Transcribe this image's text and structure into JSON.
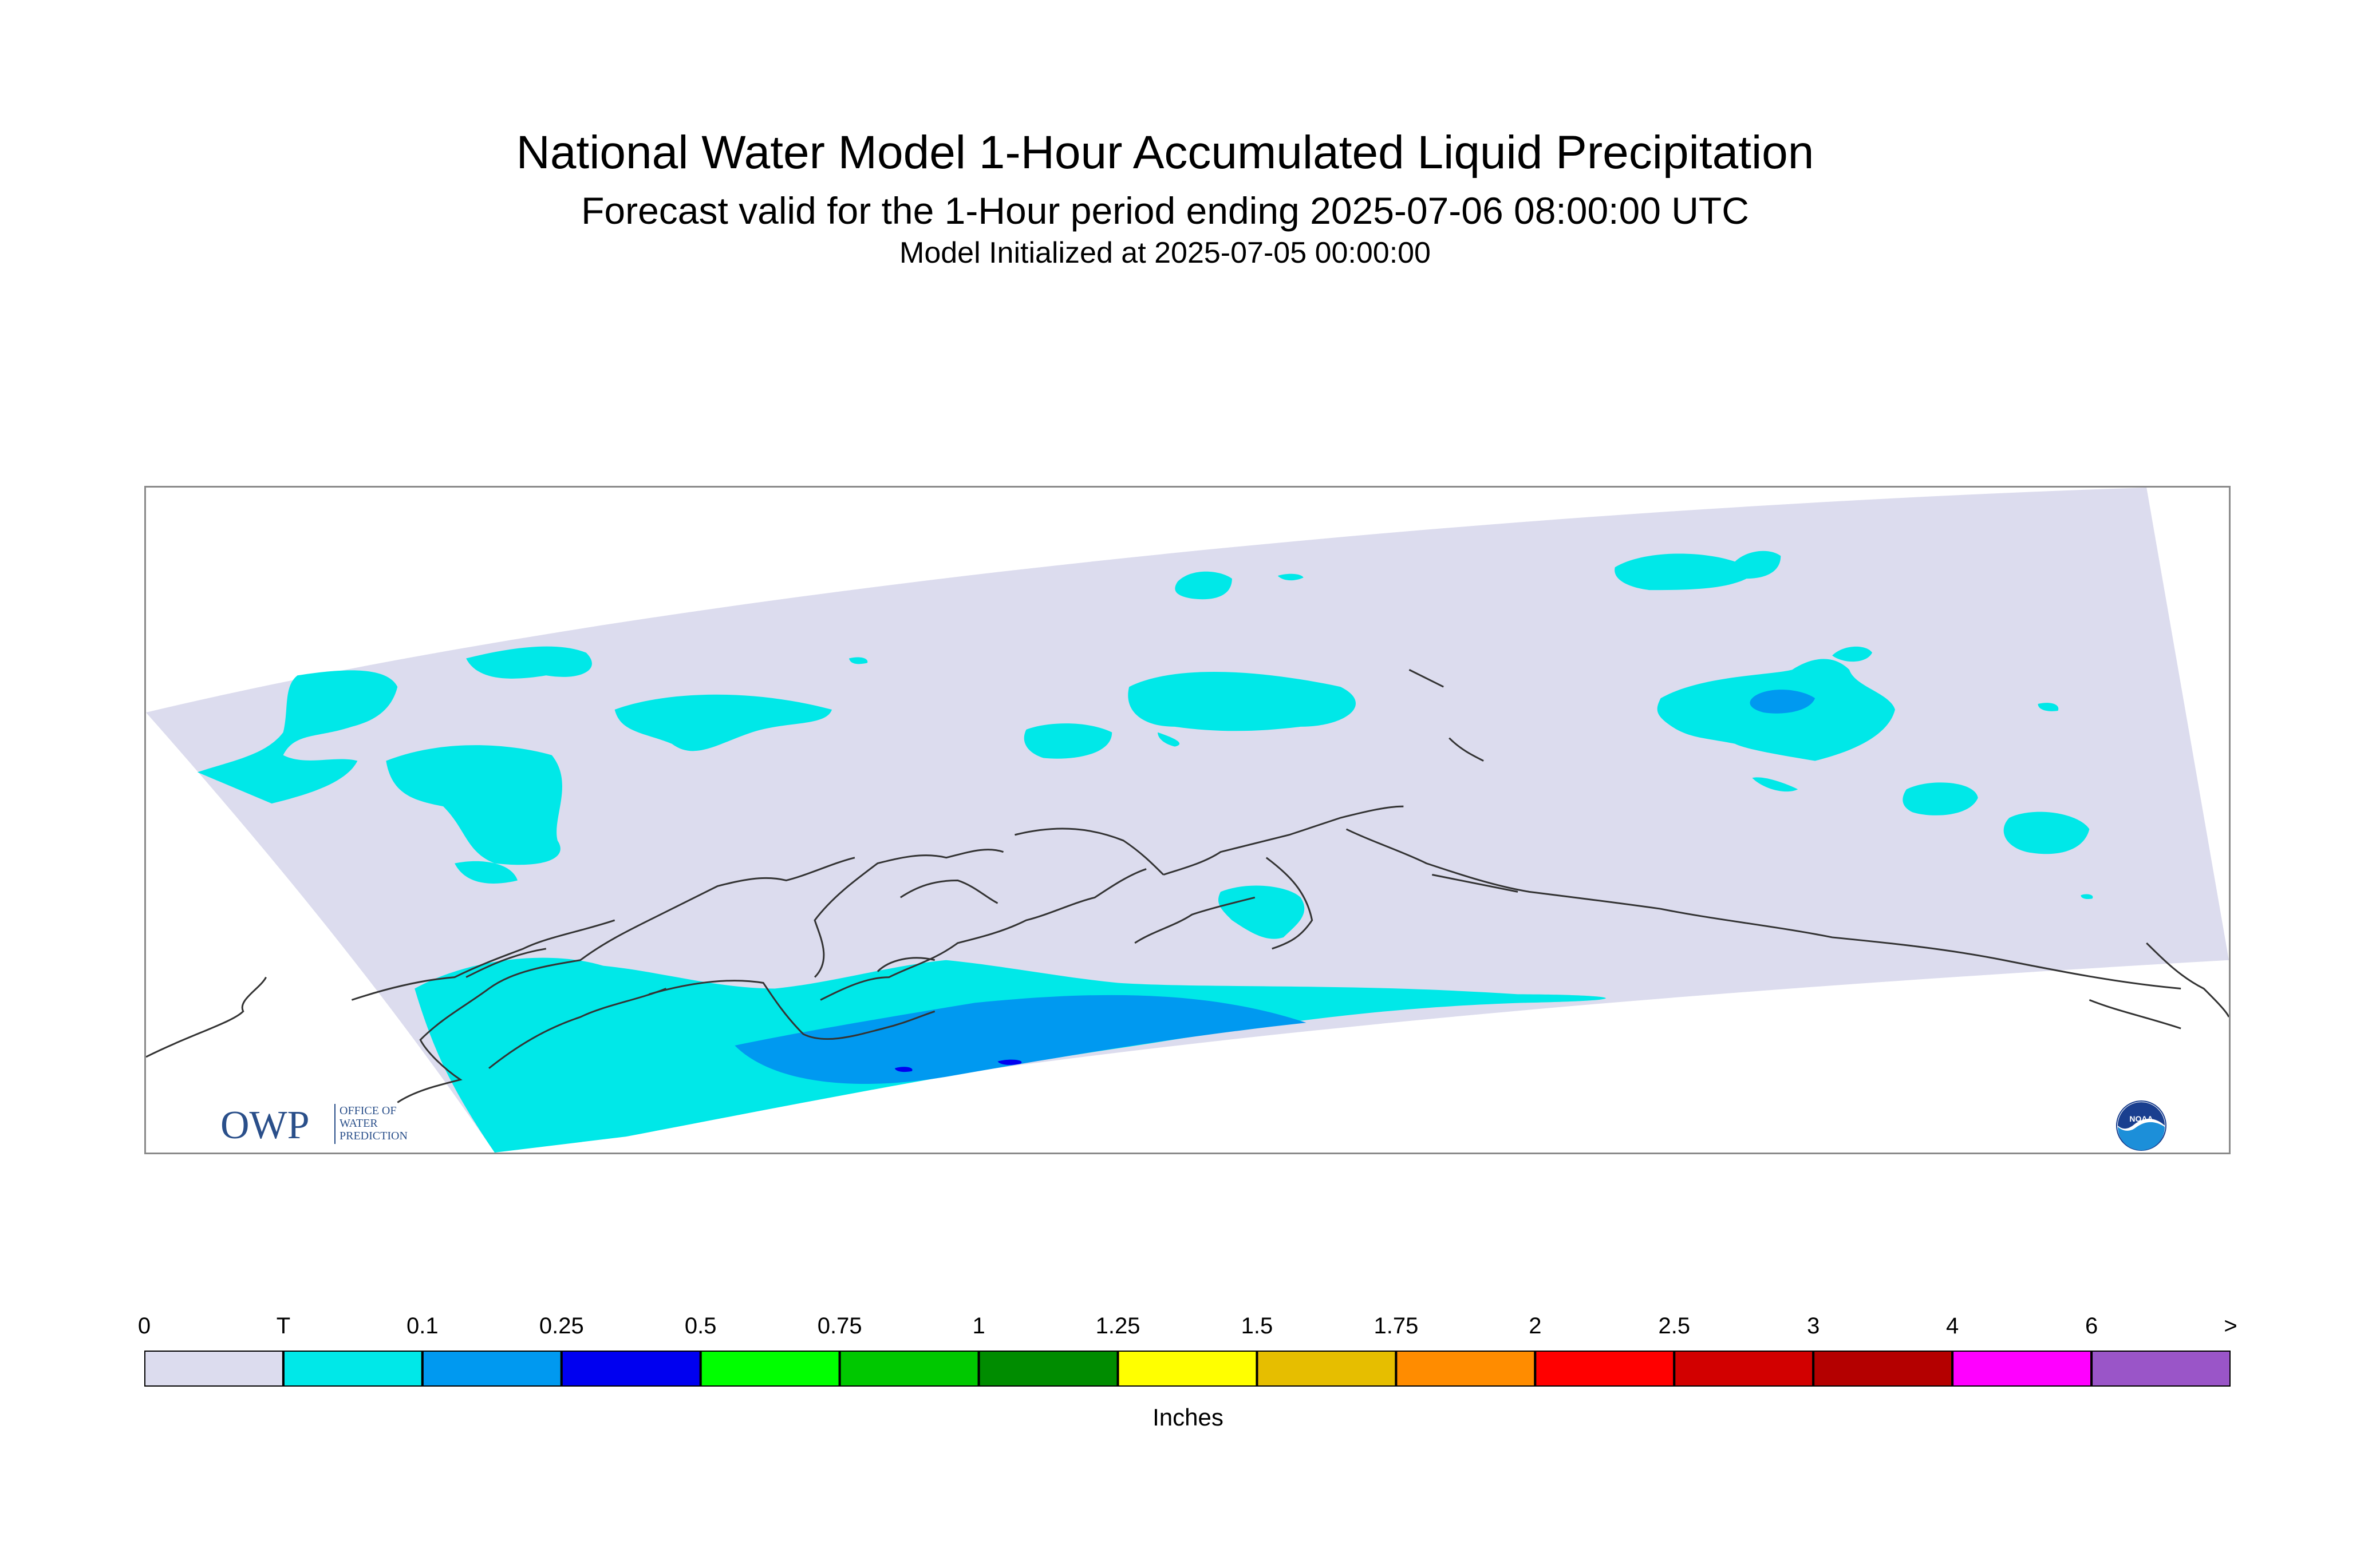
{
  "header": {
    "title": "National Water Model 1-Hour Accumulated Liquid Precipitation",
    "subtitle": "Forecast valid for the 1-Hour period ending 2025-07-06 08:00:00 UTC",
    "init_line": "Model Initialized at 2025-07-05 00:00:00"
  },
  "logos": {
    "owp": {
      "mark": "OWP",
      "lines": [
        "OFFICE OF",
        "WATER",
        "PREDICTION"
      ]
    },
    "noaa": {
      "mark": "NOAA",
      "icon": "noaa-seal-icon"
    }
  },
  "legend": {
    "units": "Inches",
    "ticks": [
      "0",
      "T",
      "0.1",
      "0.25",
      "0.5",
      "0.75",
      "1",
      "1.25",
      "1.5",
      "1.75",
      "2",
      "2.5",
      "3",
      "4",
      "6",
      ">"
    ],
    "colors": [
      "#dcdcee",
      "#00e8e8",
      "#0099f0",
      "#0000f0",
      "#00ff00",
      "#00c800",
      "#008c00",
      "#ffff00",
      "#e6be00",
      "#ff8c00",
      "#ff0000",
      "#d20000",
      "#b40000",
      "#ff00ff",
      "#9a55c8"
    ]
  },
  "colors": {
    "domain_fill": "#dcdcee",
    "trace": "#00e8e8",
    "light_blue": "#0099f0",
    "blue": "#0000f0",
    "coastline": "#333333"
  }
}
